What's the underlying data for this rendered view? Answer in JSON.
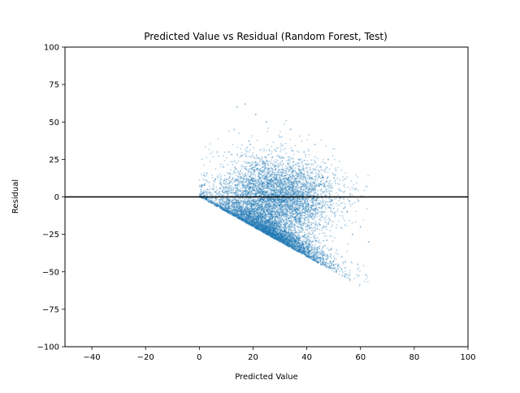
{
  "chart_data": {
    "type": "scatter",
    "title": "Predicted Value vs Residual (Random Forest, Test)",
    "xlabel": "Predicted Value",
    "ylabel": "Residual",
    "xlim": [
      -50,
      100
    ],
    "ylim": [
      -100,
      100
    ],
    "xticks": [
      -40,
      -20,
      0,
      20,
      40,
      60,
      80,
      100
    ],
    "yticks": [
      -100,
      -75,
      -50,
      -25,
      0,
      25,
      50,
      75,
      100
    ],
    "grid": false,
    "legend": "none",
    "reference_line": {
      "y": 0,
      "color": "#000000"
    },
    "series_color": "#1f77b4",
    "density_summary": {
      "predicted_range": [
        0,
        63
      ],
      "residual_range": [
        -57,
        65
      ],
      "lower_bound_rule": "residual >= -predicted",
      "densest_region": {
        "x": [
          15,
          45
        ],
        "y": [
          -20,
          15
        ]
      }
    },
    "sample_points": [
      {
        "x": 2,
        "y": -1
      },
      {
        "x": 3,
        "y": 5
      },
      {
        "x": 5,
        "y": -4
      },
      {
        "x": 6,
        "y": 12
      },
      {
        "x": 8,
        "y": -7
      },
      {
        "x": 9,
        "y": 20
      },
      {
        "x": 10,
        "y": -9
      },
      {
        "x": 11,
        "y": 30
      },
      {
        "x": 12,
        "y": -11
      },
      {
        "x": 13,
        "y": 45
      },
      {
        "x": 14,
        "y": 60
      },
      {
        "x": 15,
        "y": -14
      },
      {
        "x": 16,
        "y": 10
      },
      {
        "x": 17,
        "y": 62
      },
      {
        "x": 18,
        "y": -17
      },
      {
        "x": 19,
        "y": 35
      },
      {
        "x": 20,
        "y": -5
      },
      {
        "x": 21,
        "y": 55
      },
      {
        "x": 22,
        "y": -21
      },
      {
        "x": 23,
        "y": 15
      },
      {
        "x": 24,
        "y": -10
      },
      {
        "x": 25,
        "y": 50
      },
      {
        "x": 26,
        "y": -25
      },
      {
        "x": 27,
        "y": 5
      },
      {
        "x": 28,
        "y": 20
      },
      {
        "x": 29,
        "y": -28
      },
      {
        "x": 30,
        "y": 40
      },
      {
        "x": 31,
        "y": -15
      },
      {
        "x": 32,
        "y": 0
      },
      {
        "x": 33,
        "y": -32
      },
      {
        "x": 34,
        "y": 45
      },
      {
        "x": 35,
        "y": 10
      },
      {
        "x": 36,
        "y": -35
      },
      {
        "x": 37,
        "y": 25
      },
      {
        "x": 38,
        "y": -20
      },
      {
        "x": 39,
        "y": 30
      },
      {
        "x": 40,
        "y": -39
      },
      {
        "x": 41,
        "y": 12
      },
      {
        "x": 42,
        "y": -30
      },
      {
        "x": 43,
        "y": 35
      },
      {
        "x": 44,
        "y": -43
      },
      {
        "x": 45,
        "y": 20
      },
      {
        "x": 46,
        "y": -10
      },
      {
        "x": 47,
        "y": -46
      },
      {
        "x": 48,
        "y": 25
      },
      {
        "x": 49,
        "y": -35
      },
      {
        "x": 50,
        "y": 15
      },
      {
        "x": 51,
        "y": -50
      },
      {
        "x": 52,
        "y": 5
      },
      {
        "x": 53,
        "y": -40
      },
      {
        "x": 54,
        "y": -53
      },
      {
        "x": 55,
        "y": -10
      },
      {
        "x": 56,
        "y": -55
      },
      {
        "x": 57,
        "y": -25
      },
      {
        "x": 58,
        "y": 5
      },
      {
        "x": 59,
        "y": -45
      },
      {
        "x": 60,
        "y": -20
      },
      {
        "x": 61,
        "y": 0
      },
      {
        "x": 62,
        "y": -52
      },
      {
        "x": 63,
        "y": -30
      }
    ]
  }
}
